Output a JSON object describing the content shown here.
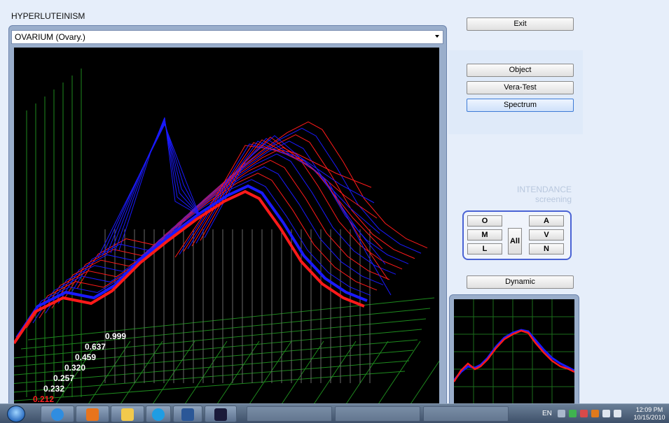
{
  "app": {
    "title": "HYPERLUTEINISM"
  },
  "organ_select": {
    "value": "OVARIUM  (Ovary.)"
  },
  "buttons": {
    "exit": "Exit",
    "object": "Object",
    "vera_test": "Vera-Test",
    "spectrum": "Spectrum",
    "dynamic": "Dynamic"
  },
  "intendance": {
    "line1": "INTENDANCE",
    "line2": "screening"
  },
  "mode_buttons": {
    "o": "O",
    "m": "M",
    "l": "L",
    "all": "All",
    "a": "A",
    "v": "V",
    "n": "N"
  },
  "value_labels": [
    "0.999",
    "0.637",
    "0.459",
    "0.320",
    "0.257",
    "0.232",
    "0.212"
  ],
  "active_value": "0.212",
  "colors": {
    "front_curve": "#ff1a1a",
    "blue_curve": "#1a1aff",
    "grid": "#1e8a1e",
    "viewport_bg": "#000000"
  },
  "taskbar": {
    "language": "EN",
    "time": "12:09 PM",
    "date": "10/15/2010",
    "pinned_icons": [
      "ie-icon",
      "media-icon",
      "folder-icon",
      "skype-icon",
      "word-icon",
      "app-icon"
    ]
  }
}
